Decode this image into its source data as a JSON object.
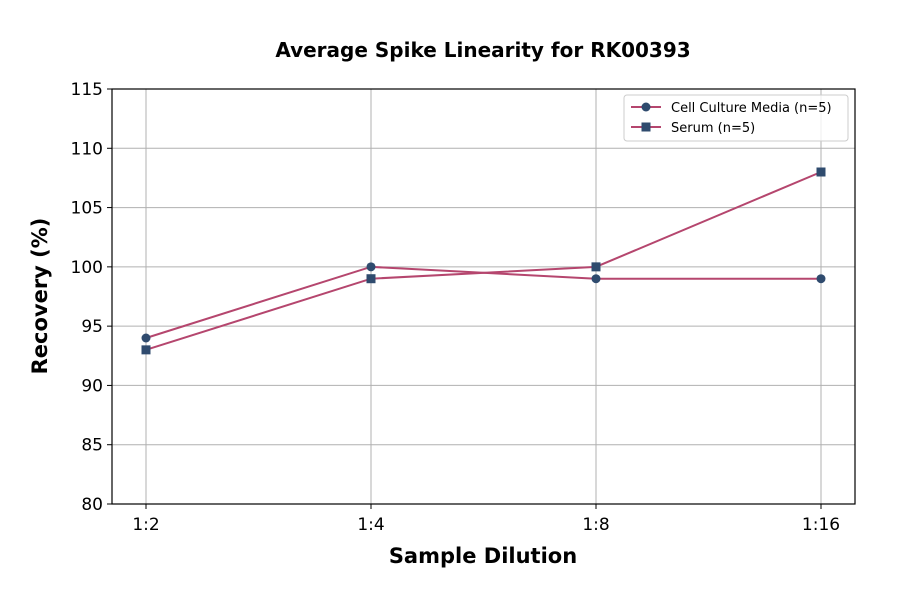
{
  "chart_data": {
    "type": "line",
    "title": "Average Spike Linearity for RK00393",
    "xlabel": "Sample Dilution",
    "ylabel": "Recovery (%)",
    "categories": [
      "1:2",
      "1:4",
      "1:8",
      "1:16"
    ],
    "ylim": [
      80,
      115
    ],
    "yticks": [
      80,
      85,
      90,
      95,
      100,
      105,
      110,
      115
    ],
    "grid": true,
    "legend_position": "top-right",
    "series": [
      {
        "name": "Cell Culture Media (n=5)",
        "values": [
          94,
          100,
          99,
          99
        ],
        "marker": "circle",
        "line_color": "#b5466e",
        "marker_color": "#2f4b6e"
      },
      {
        "name": "Serum (n=5)",
        "values": [
          93,
          99,
          100,
          108
        ],
        "marker": "square",
        "line_color": "#b5466e",
        "marker_color": "#2f4b6e"
      }
    ]
  }
}
